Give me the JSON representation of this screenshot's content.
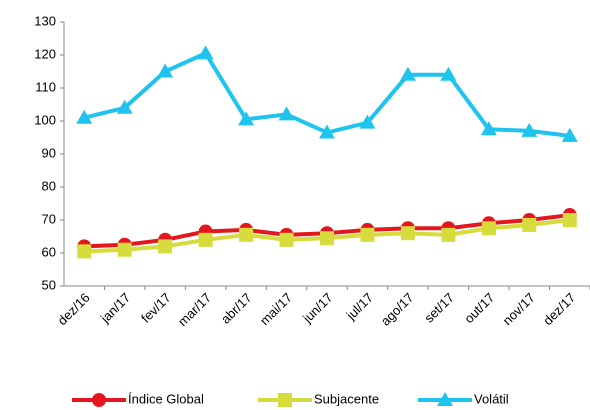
{
  "chart_data": {
    "type": "line",
    "categories": [
      "dez/16",
      "jan/17",
      "fev/17",
      "mar/17",
      "abr/17",
      "mai/17",
      "jun/17",
      "jul/17",
      "ago/17",
      "set/17",
      "out/17",
      "nov/17",
      "dez/17"
    ],
    "series": [
      {
        "name": "Índice Global",
        "color": "#e3171d",
        "marker": "circle",
        "values": [
          62,
          62.5,
          64,
          66.5,
          67,
          65.5,
          66,
          67,
          67.5,
          67.5,
          69,
          70,
          71.5
        ]
      },
      {
        "name": "Subjacente",
        "color": "#d6dc3c",
        "marker": "square",
        "values": [
          60.5,
          61,
          62,
          64,
          65.5,
          64,
          64.5,
          65.5,
          66,
          65.5,
          67.5,
          68.5,
          70
        ]
      },
      {
        "name": "Volátil",
        "color": "#1ec4ee",
        "marker": "triangle",
        "values": [
          101,
          104,
          115,
          120.5,
          100.5,
          102,
          96.5,
          99.5,
          114,
          114,
          97.5,
          97,
          95.5
        ]
      }
    ],
    "ylim": [
      50,
      130
    ],
    "yticks": [
      50,
      60,
      70,
      80,
      90,
      100,
      110,
      120,
      130
    ],
    "grid": false,
    "legend": "bottom"
  }
}
